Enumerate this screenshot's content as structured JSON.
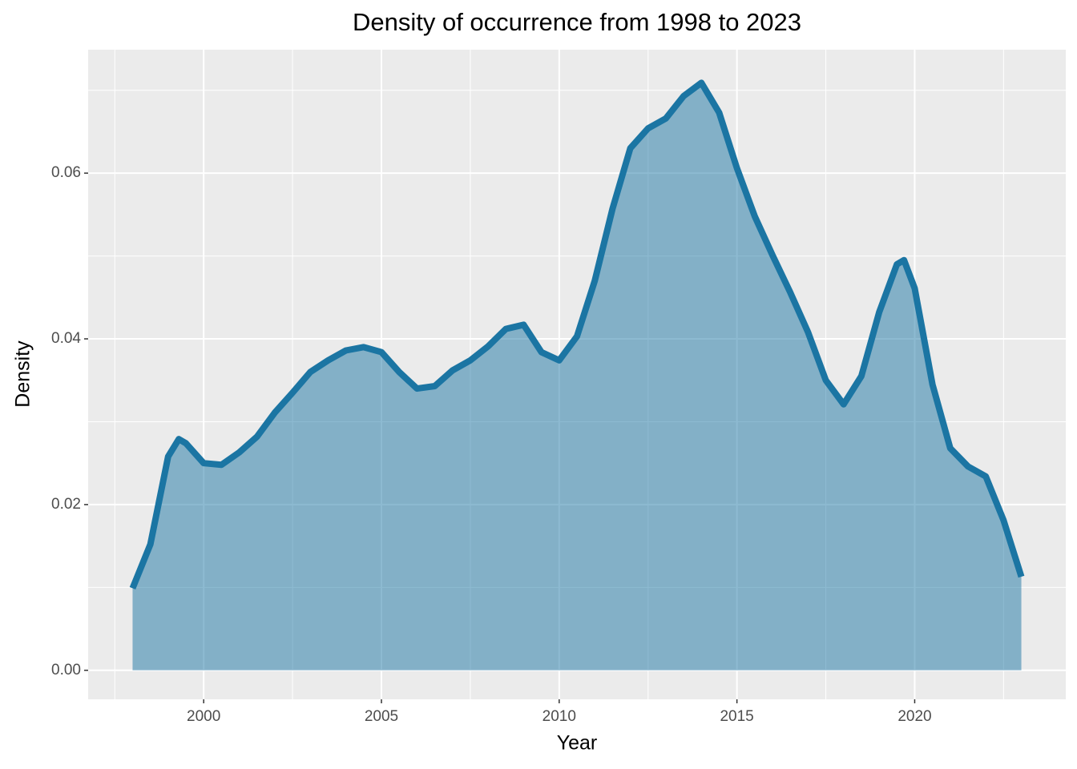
{
  "chart_data": {
    "type": "density",
    "title": "Density of occurrence from 1998 to 2023",
    "x_label": "Year",
    "y_label": "Density",
    "color": "#1b75a3",
    "grid": true,
    "x": [
      1998.0,
      1998.5,
      1999.0,
      1999.3,
      1999.5,
      2000.0,
      2000.5,
      2001.0,
      2001.5,
      2002.0,
      2002.5,
      2003.0,
      2003.5,
      2004.0,
      2004.5,
      2005.0,
      2005.5,
      2006.0,
      2006.5,
      2007.0,
      2007.5,
      2008.0,
      2008.5,
      2009.0,
      2009.5,
      2010.0,
      2010.5,
      2011.0,
      2011.5,
      2012.0,
      2012.5,
      2013.0,
      2013.5,
      2014.0,
      2014.5,
      2015.0,
      2015.5,
      2016.0,
      2016.5,
      2017.0,
      2017.5,
      2018.0,
      2018.5,
      2019.0,
      2019.5,
      2019.7,
      2020.0,
      2020.5,
      2021.0,
      2021.5,
      2022.0,
      2022.5,
      2023.0
    ],
    "values": [
      0.0099,
      0.0152,
      0.0258,
      0.0279,
      0.0274,
      0.025,
      0.0248,
      0.0263,
      0.0282,
      0.0311,
      0.0335,
      0.036,
      0.0374,
      0.0386,
      0.039,
      0.0384,
      0.036,
      0.034,
      0.0343,
      0.0362,
      0.0374,
      0.0391,
      0.0412,
      0.0417,
      0.0384,
      0.0374,
      0.0403,
      0.047,
      0.0557,
      0.063,
      0.0654,
      0.0666,
      0.0693,
      0.0709,
      0.0673,
      0.0606,
      0.0548,
      0.0501,
      0.0456,
      0.0408,
      0.035,
      0.0321,
      0.0355,
      0.0432,
      0.049,
      0.0495,
      0.0461,
      0.0345,
      0.0268,
      0.0246,
      0.0234,
      0.0181,
      0.0113
    ],
    "xlim": [
      1996.75,
      2024.25
    ],
    "xticks": [
      2000,
      2005,
      2010,
      2015,
      2020
    ],
    "ylim": [
      -0.0035,
      0.0749
    ],
    "yticks": [
      {
        "value": 0,
        "label": "0.00"
      },
      {
        "value": 0.02,
        "label": "0.02"
      },
      {
        "value": 0.04,
        "label": "0.04"
      },
      {
        "value": 0.06,
        "label": "0.06"
      }
    ]
  }
}
